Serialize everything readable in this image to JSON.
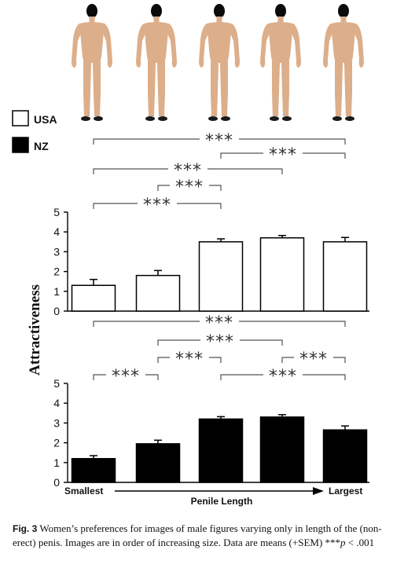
{
  "legend": [
    {
      "name": "USA",
      "color": "#ffffff"
    },
    {
      "name": "NZ",
      "color": "#000000"
    }
  ],
  "figures": {
    "count": 5,
    "icon": "male-figure-icon",
    "skin_color": "#dcae8a"
  },
  "ylabel": "Attractiveness",
  "x_axis": {
    "left_label": "Smallest",
    "center_label": "Penile Length",
    "right_label": "Largest"
  },
  "significance_mark": "***",
  "chart_data": [
    {
      "type": "bar",
      "series": [
        {
          "name": "USA",
          "color": "#ffffff",
          "values": [
            1.3,
            1.8,
            3.5,
            3.7,
            3.5
          ],
          "sem": [
            0.3,
            0.25,
            0.15,
            0.12,
            0.22
          ]
        }
      ],
      "categories": [
        "1",
        "2",
        "3",
        "4",
        "5"
      ],
      "ylim": [
        0,
        5
      ],
      "yticks": [
        "0",
        "1",
        "2",
        "3",
        "4",
        "5"
      ],
      "significance": [
        [
          1,
          5
        ],
        [
          3,
          5
        ],
        [
          1,
          4
        ],
        [
          2,
          3
        ],
        [
          1,
          3
        ]
      ]
    },
    {
      "type": "bar",
      "series": [
        {
          "name": "NZ",
          "color": "#000000",
          "values": [
            1.2,
            1.95,
            3.2,
            3.3,
            2.65
          ],
          "sem": [
            0.15,
            0.18,
            0.12,
            0.12,
            0.2
          ]
        }
      ],
      "categories": [
        "1",
        "2",
        "3",
        "4",
        "5"
      ],
      "ylim": [
        0,
        5
      ],
      "yticks": [
        "0",
        "1",
        "2",
        "3",
        "4",
        "5"
      ],
      "significance": [
        [
          1,
          5
        ],
        [
          2,
          4
        ],
        [
          2,
          3
        ],
        [
          4,
          5
        ],
        [
          1,
          2
        ],
        [
          3,
          5
        ]
      ]
    }
  ],
  "caption": {
    "label": "Fig. 3",
    "text": " Women’s preferences for images of male figures varying only in length of the (non-erect) penis. Images are in order of increasing size. Data are means (+SEM) ",
    "pvalue_prefix": "***",
    "pvalue_var": "p",
    "pvalue_rest": " < .001"
  }
}
